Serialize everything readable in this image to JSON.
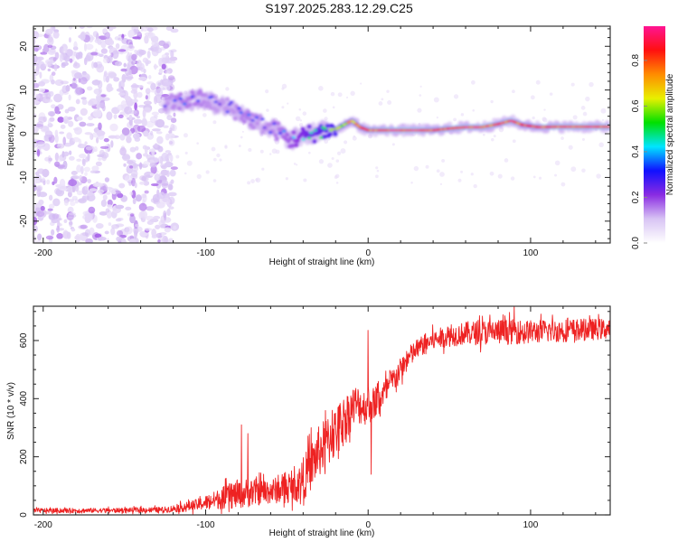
{
  "page_title": "S197.2025.283.12.29.C25",
  "chart_data": [
    {
      "type": "heatmap",
      "title": "S197.2025.283.12.29.C25",
      "xlabel": "Height of straight line (km)",
      "ylabel": "Frequency (Hz)",
      "xlim": [
        -206,
        149
      ],
      "ylim": [
        -25,
        24.6
      ],
      "xticks": [
        -200,
        -100,
        0,
        100
      ],
      "xtick_labels": [
        "-200",
        "-100",
        "0",
        "100"
      ],
      "yticks": [
        -20,
        -10,
        0,
        10,
        20
      ],
      "ytick_labels": [
        "-20",
        "-10",
        "0",
        "10",
        "20"
      ],
      "colorbar": {
        "label": "Normalized spectral amplitude",
        "range": [
          0,
          0.95
        ],
        "ticks": [
          0.0,
          0.2,
          0.4,
          0.6,
          0.8
        ],
        "tick_labels": [
          "0.0",
          "0.2",
          "0.4",
          "0.6",
          "0.8"
        ],
        "colormap": [
          "#ffffff",
          "#d8c4f4",
          "#8a2be2",
          "#1010ff",
          "#00e5ff",
          "#00e000",
          "#e8f000",
          "#ff8c00",
          "#ff1010",
          "#ff1493"
        ]
      },
      "ridge": {
        "description": "dominant frequency track",
        "x": [
          -125,
          -115,
          -105,
          -95,
          -85,
          -75,
          -65,
          -55,
          -48,
          -40,
          -30,
          -20,
          -15,
          -10,
          -5,
          0,
          10,
          20,
          30,
          40,
          50,
          60,
          70,
          80,
          88,
          95,
          105,
          115,
          125,
          135,
          149
        ],
        "y": [
          6.5,
          7.5,
          8,
          7,
          6,
          4,
          2,
          0.5,
          -1.5,
          -0.5,
          0.5,
          1,
          2,
          3,
          1.5,
          0.8,
          0.8,
          0.8,
          0.8,
          0.8,
          1.2,
          1.5,
          1.5,
          2.2,
          3,
          2,
          1.5,
          1.6,
          1.6,
          1.6,
          1.6
        ],
        "amplitude": [
          0.3,
          0.35,
          0.35,
          0.3,
          0.3,
          0.35,
          0.3,
          0.35,
          0.4,
          0.5,
          0.55,
          0.6,
          0.7,
          0.75,
          0.8,
          0.85,
          0.9,
          0.92,
          0.92,
          0.85,
          0.88,
          0.9,
          0.9,
          0.85,
          0.9,
          0.82,
          0.85,
          0.9,
          0.9,
          0.9,
          0.9
        ]
      },
      "noise_region": {
        "x_range": [
          -206,
          -125
        ],
        "y_range": [
          -25,
          24.6
        ],
        "amplitude": "low (0.0-0.15)"
      }
    },
    {
      "type": "line",
      "xlabel": "Height of straight line (km)",
      "ylabel": "SNR (10 * v/v)",
      "xlim": [
        -206,
        149
      ],
      "ylim": [
        0,
        718
      ],
      "xticks": [
        -200,
        -100,
        0,
        100
      ],
      "xtick_labels": [
        "-200",
        "-100",
        "0",
        "100"
      ],
      "yticks": [
        0,
        200,
        400,
        600
      ],
      "ytick_labels": [
        "0",
        "200",
        "400",
        "600"
      ],
      "color": "#ee2222",
      "series": [
        {
          "name": "SNR",
          "envelope_x": [
            -206,
            -180,
            -150,
            -125,
            -115,
            -105,
            -95,
            -85,
            -75,
            -65,
            -55,
            -45,
            -38,
            -30,
            -22,
            -15,
            -8,
            0,
            5,
            10,
            15,
            20,
            25,
            30,
            35,
            45,
            60,
            80,
            100,
            120,
            149
          ],
          "envelope_mean": [
            15,
            15,
            16,
            18,
            25,
            35,
            50,
            65,
            75,
            80,
            85,
            95,
            140,
            220,
            270,
            330,
            380,
            370,
            390,
            420,
            460,
            500,
            540,
            570,
            590,
            610,
            625,
            630,
            630,
            635,
            640
          ],
          "noise_amplitude": [
            8,
            8,
            8,
            10,
            15,
            20,
            30,
            45,
            50,
            45,
            45,
            50,
            80,
            90,
            90,
            80,
            70,
            60,
            55,
            50,
            45,
            40,
            40,
            35,
            35,
            35,
            40,
            45,
            40,
            40,
            35
          ],
          "spikes": [
            {
              "x": -78,
              "y": 310
            },
            {
              "x": -74,
              "y": 280
            },
            {
              "x": -35,
              "y": 300
            },
            {
              "x": -22,
              "y": 360
            },
            {
              "x": 0,
              "y": 635
            },
            {
              "x": 2,
              "y": 140
            },
            {
              "x": 90,
              "y": 720
            }
          ]
        }
      ]
    }
  ]
}
